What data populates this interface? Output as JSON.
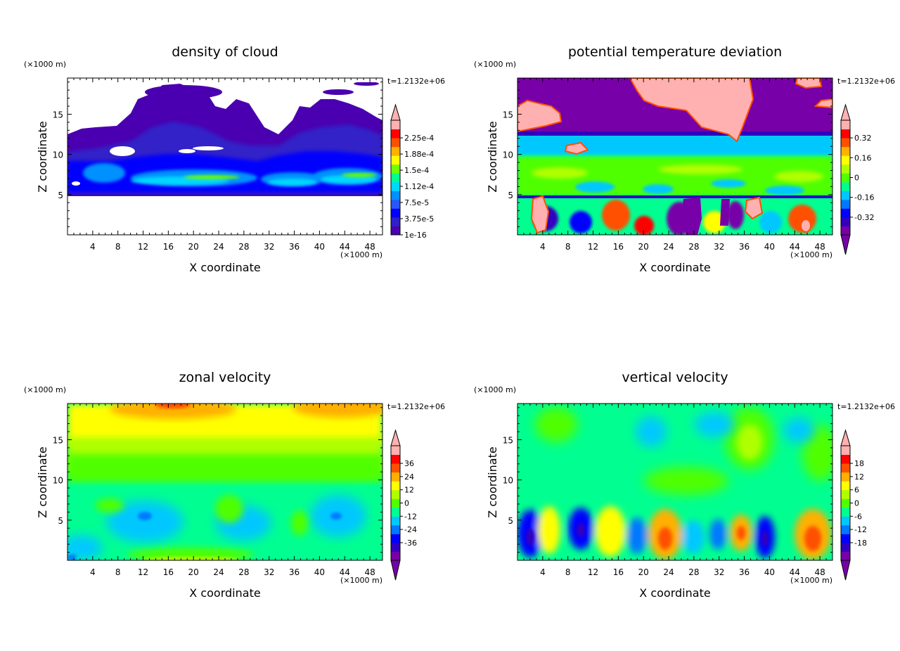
{
  "figure": {
    "panels": [
      {
        "id": "cloud",
        "chart_data": {
          "type": "heatmap",
          "title": "density of cloud",
          "xlabel": "X coordinate",
          "ylabel": "Z coordinate",
          "x_unit": "(×1000 m)",
          "y_unit": "(×1000 m)",
          "time_label": "t=1.2132e+06",
          "xlim": [
            0,
            50
          ],
          "ylim": [
            0,
            19.5
          ],
          "xticks": [
            4,
            8,
            12,
            16,
            20,
            24,
            28,
            32,
            36,
            40,
            44,
            48
          ],
          "yticks": [
            5,
            10,
            15
          ],
          "colorbar": {
            "labels": [
              "2.25e-4",
              "1.88e-4",
              "1.5e-4",
              "1.12e-4",
              "7.5e-5",
              "3.75e-5",
              "1e-16"
            ],
            "colors": [
              "#4a00b0",
              "#3020c8",
              "#0000ff",
              "#2a55ff",
              "#0090ff",
              "#00d8ff",
              "#00ff90",
              "#70ff00",
              "#ffff00",
              "#ffb000",
              "#ff5000",
              "#ff0000",
              "#ffb0b0"
            ],
            "extend_low": false,
            "extend_high": true
          },
          "colormap": "viridis-like (low values blue/purple, high values yellow/red)"
        }
      },
      {
        "id": "theta",
        "chart_data": {
          "type": "heatmap",
          "title": "potential temperature deviation",
          "xlabel": "X coordinate",
          "ylabel": "Z coordinate",
          "x_unit": "(×1000 m)",
          "y_unit": "(×1000 m)",
          "time_label": "t=1.2132e+06",
          "xlim": [
            0,
            50
          ],
          "ylim": [
            0,
            19.5
          ],
          "xticks": [
            4,
            8,
            12,
            16,
            20,
            24,
            28,
            32,
            36,
            40,
            44,
            48
          ],
          "yticks": [
            5,
            10,
            15
          ],
          "colorbar": {
            "labels": [
              "0.32",
              "0.16",
              "0",
              "-0.16",
              "-0.32"
            ],
            "colors": [
              "#7800a8",
              "#3000c0",
              "#0000ff",
              "#0078ff",
              "#00c8ff",
              "#00ff90",
              "#50ff00",
              "#b0ff00",
              "#ffff00",
              "#ffb000",
              "#ff5000",
              "#ff0000",
              "#ffb0b0"
            ],
            "extend_low": true,
            "extend_high": true
          },
          "colormap": "viridis-like (low values blue/purple, high values yellow/red)"
        }
      },
      {
        "id": "u",
        "chart_data": {
          "type": "heatmap",
          "title": "zonal velocity",
          "xlabel": "X coordinate",
          "ylabel": "Z coordinate",
          "x_unit": "(×1000 m)",
          "y_unit": "(×1000 m)",
          "time_label": "t=1.2132e+06",
          "xlim": [
            0,
            50
          ],
          "ylim": [
            0,
            19.5
          ],
          "xticks": [
            4,
            8,
            12,
            16,
            20,
            24,
            28,
            32,
            36,
            40,
            44,
            48
          ],
          "yticks": [
            5,
            10,
            15
          ],
          "colorbar": {
            "labels": [
              "36",
              "24",
              "12",
              "0",
              "-12",
              "-24",
              "-36"
            ],
            "colors": [
              "#7800a8",
              "#3000c0",
              "#0000ff",
              "#0078ff",
              "#00c8ff",
              "#00ff90",
              "#50ff00",
              "#b0ff00",
              "#ffff00",
              "#ffb000",
              "#ff5000",
              "#ff0000",
              "#ffb0b0"
            ],
            "extend_low": true,
            "extend_high": true
          },
          "colormap": "viridis-like (low values blue/purple, high values yellow/red)"
        }
      },
      {
        "id": "w",
        "chart_data": {
          "type": "heatmap",
          "title": "vertical velocity",
          "xlabel": "X coordinate",
          "ylabel": "Z coordinate",
          "x_unit": "(×1000 m)",
          "y_unit": "(×1000 m)",
          "time_label": "t=1.2132e+06",
          "xlim": [
            0,
            50
          ],
          "ylim": [
            0,
            19.5
          ],
          "xticks": [
            4,
            8,
            12,
            16,
            20,
            24,
            28,
            32,
            36,
            40,
            44,
            48
          ],
          "yticks": [
            5,
            10,
            15
          ],
          "colorbar": {
            "labels": [
              "18",
              "12",
              "6",
              "0",
              "-6",
              "-12",
              "-18"
            ],
            "colors": [
              "#7800a8",
              "#3000c0",
              "#0000ff",
              "#0078ff",
              "#00c8ff",
              "#00ff90",
              "#50ff00",
              "#b0ff00",
              "#ffff00",
              "#ffb000",
              "#ff5000",
              "#ff0000",
              "#ffb0b0"
            ],
            "extend_low": true,
            "extend_high": true
          },
          "colormap": "viridis-like (low values blue/purple, high values yellow/red)"
        }
      }
    ]
  }
}
